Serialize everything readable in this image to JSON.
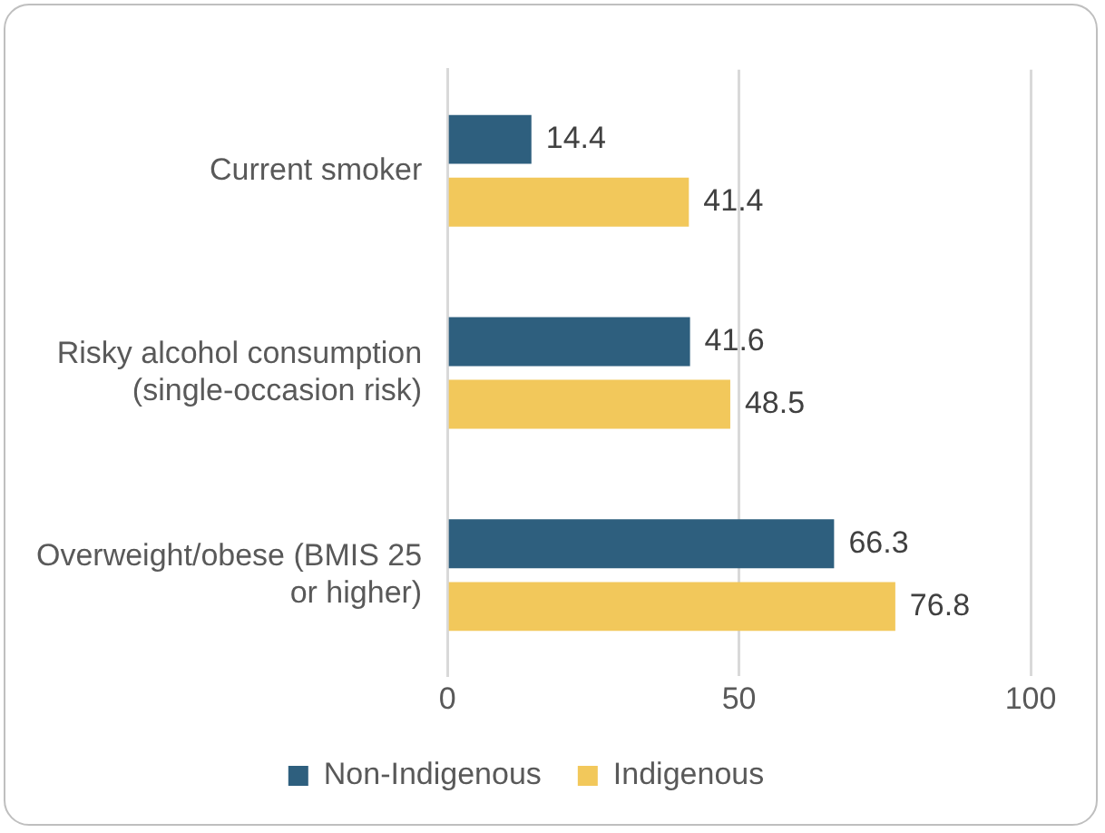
{
  "chart_data": {
    "type": "bar",
    "orientation": "horizontal",
    "categories": [
      "Current smoker",
      "Risky alcohol consumption (single-occasion risk)",
      "Overweight/obese (BMIS 25 or higher)"
    ],
    "series": [
      {
        "name": "Non-Indigenous",
        "color": "#2e5f7e",
        "values": [
          14.4,
          41.6,
          66.3
        ]
      },
      {
        "name": "Indigenous",
        "color": "#f2c85b",
        "values": [
          41.4,
          48.5,
          76.8
        ]
      }
    ],
    "xlim": [
      0,
      100
    ],
    "xticks": [
      0,
      50,
      100
    ],
    "grid": "x",
    "legend": "bottom",
    "data_labels": true
  }
}
